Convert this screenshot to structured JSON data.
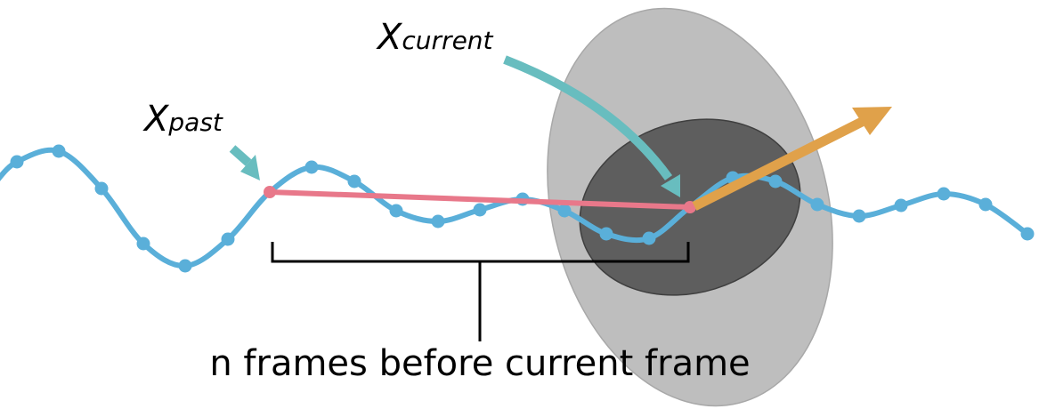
{
  "labels": {
    "x_past": {
      "base": "X",
      "sub": "past"
    },
    "x_current": {
      "base": "X",
      "sub": "current"
    },
    "caption": "n frames before current frame"
  },
  "colors": {
    "trajectory": "#5aafd9",
    "segment": "#e8788a",
    "pointer_arrows": "#68bdbf",
    "direction_arrow": "#e0a14a",
    "outer_ellipse": "#bebebe",
    "inner_ellipse": "#5e5e5e",
    "bracket": "#000000"
  }
}
